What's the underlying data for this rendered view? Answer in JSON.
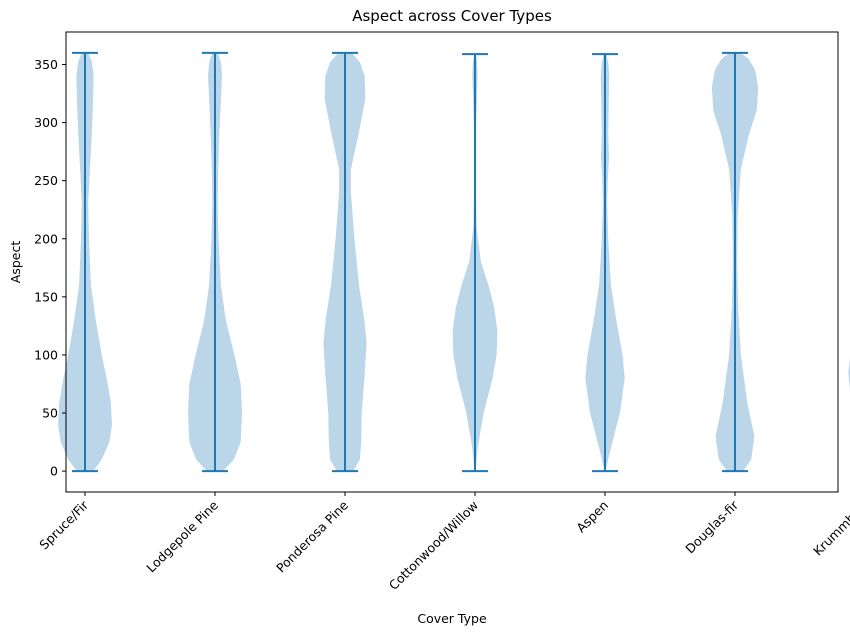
{
  "chart_data": {
    "type": "violin",
    "title": "Aspect across Cover Types",
    "xlabel": "Cover Type",
    "ylabel": "Aspect",
    "ylim": [
      -18,
      378
    ],
    "yticks": [
      0,
      50,
      100,
      150,
      200,
      250,
      300,
      350
    ],
    "categories": [
      "Spruce/Fir",
      "Lodgepole Pine",
      "Ponderosa Pine",
      "Cottonwood/Willow",
      "Aspen",
      "Douglas-fir",
      "Krummholz"
    ],
    "colors": {
      "body": "#1f77b4",
      "fill_opacity": 0.3
    },
    "series": [
      {
        "name": "Spruce/Fir",
        "min": 0,
        "max": 360,
        "density": [
          [
            0,
            0.3
          ],
          [
            10,
            0.62
          ],
          [
            25,
            0.9
          ],
          [
            40,
            1.0
          ],
          [
            60,
            0.95
          ],
          [
            80,
            0.8
          ],
          [
            100,
            0.62
          ],
          [
            130,
            0.4
          ],
          [
            160,
            0.22
          ],
          [
            200,
            0.15
          ],
          [
            230,
            0.12
          ],
          [
            260,
            0.18
          ],
          [
            290,
            0.25
          ],
          [
            320,
            0.3
          ],
          [
            340,
            0.32
          ],
          [
            352,
            0.26
          ],
          [
            360,
            0.12
          ]
        ]
      },
      {
        "name": "Lodgepole Pine",
        "min": 0,
        "max": 360,
        "density": [
          [
            0,
            0.3
          ],
          [
            10,
            0.7
          ],
          [
            25,
            0.95
          ],
          [
            50,
            1.0
          ],
          [
            75,
            0.95
          ],
          [
            100,
            0.72
          ],
          [
            130,
            0.4
          ],
          [
            160,
            0.22
          ],
          [
            200,
            0.13
          ],
          [
            230,
            0.1
          ],
          [
            260,
            0.12
          ],
          [
            290,
            0.16
          ],
          [
            320,
            0.22
          ],
          [
            340,
            0.26
          ],
          [
            352,
            0.22
          ],
          [
            360,
            0.1
          ]
        ]
      },
      {
        "name": "Ponderosa Pine",
        "min": 0,
        "max": 360,
        "density": [
          [
            0,
            0.3
          ],
          [
            10,
            0.55
          ],
          [
            25,
            0.6
          ],
          [
            50,
            0.62
          ],
          [
            80,
            0.72
          ],
          [
            110,
            0.8
          ],
          [
            130,
            0.72
          ],
          [
            160,
            0.52
          ],
          [
            200,
            0.35
          ],
          [
            240,
            0.22
          ],
          [
            260,
            0.22
          ],
          [
            290,
            0.5
          ],
          [
            320,
            0.75
          ],
          [
            340,
            0.73
          ],
          [
            352,
            0.55
          ],
          [
            360,
            0.25
          ]
        ]
      },
      {
        "name": "Cottonwood/Willow",
        "min": 0,
        "max": 359,
        "density": [
          [
            0,
            0.02
          ],
          [
            20,
            0.1
          ],
          [
            50,
            0.32
          ],
          [
            80,
            0.65
          ],
          [
            100,
            0.8
          ],
          [
            120,
            0.83
          ],
          [
            140,
            0.72
          ],
          [
            160,
            0.5
          ],
          [
            180,
            0.22
          ],
          [
            210,
            0.06
          ],
          [
            250,
            0.03
          ],
          [
            290,
            0.03
          ],
          [
            320,
            0.07
          ],
          [
            340,
            0.1
          ],
          [
            352,
            0.08
          ],
          [
            359,
            0.03
          ]
        ]
      },
      {
        "name": "Aspen",
        "min": 0,
        "max": 359,
        "density": [
          [
            0,
            0.02
          ],
          [
            20,
            0.22
          ],
          [
            50,
            0.55
          ],
          [
            80,
            0.73
          ],
          [
            100,
            0.65
          ],
          [
            130,
            0.42
          ],
          [
            160,
            0.22
          ],
          [
            200,
            0.12
          ],
          [
            230,
            0.08
          ],
          [
            250,
            0.1
          ],
          [
            270,
            0.15
          ],
          [
            290,
            0.12
          ],
          [
            320,
            0.14
          ],
          [
            340,
            0.16
          ],
          [
            352,
            0.12
          ],
          [
            359,
            0.05
          ]
        ]
      },
      {
        "name": "Douglas-fir",
        "min": 0,
        "max": 360,
        "density": [
          [
            0,
            0.3
          ],
          [
            10,
            0.6
          ],
          [
            30,
            0.72
          ],
          [
            60,
            0.45
          ],
          [
            100,
            0.22
          ],
          [
            140,
            0.12
          ],
          [
            180,
            0.08
          ],
          [
            220,
            0.1
          ],
          [
            260,
            0.22
          ],
          [
            290,
            0.52
          ],
          [
            310,
            0.8
          ],
          [
            330,
            0.86
          ],
          [
            345,
            0.75
          ],
          [
            355,
            0.5
          ],
          [
            360,
            0.2
          ]
        ]
      },
      {
        "name": "Krummholz",
        "min": 0,
        "max": 360,
        "density": [
          [
            0,
            0.28
          ],
          [
            10,
            0.45
          ],
          [
            30,
            0.45
          ],
          [
            60,
            0.52
          ],
          [
            85,
            0.62
          ],
          [
            110,
            0.48
          ],
          [
            140,
            0.45
          ],
          [
            170,
            0.45
          ],
          [
            200,
            0.3
          ],
          [
            230,
            0.18
          ],
          [
            260,
            0.12
          ],
          [
            290,
            0.25
          ],
          [
            320,
            0.4
          ],
          [
            340,
            0.42
          ],
          [
            352,
            0.32
          ],
          [
            360,
            0.12
          ]
        ]
      }
    ]
  }
}
